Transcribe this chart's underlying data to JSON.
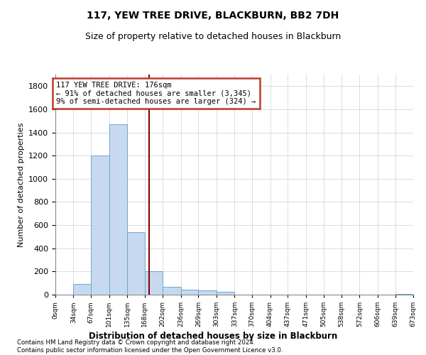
{
  "title": "117, YEW TREE DRIVE, BLACKBURN, BB2 7DH",
  "subtitle": "Size of property relative to detached houses in Blackburn",
  "xlabel": "Distribution of detached houses by size in Blackburn",
  "ylabel": "Number of detached properties",
  "bar_values": [
    0,
    90,
    1200,
    1470,
    540,
    205,
    70,
    45,
    35,
    25,
    0,
    0,
    0,
    0,
    0,
    0,
    0,
    0,
    0,
    5
  ],
  "bin_edges": [
    0,
    34,
    67,
    101,
    135,
    168,
    202,
    236,
    269,
    303,
    337,
    370,
    404,
    437,
    471,
    505,
    538,
    572,
    606,
    639,
    673
  ],
  "bin_labels": [
    "0sqm",
    "34sqm",
    "67sqm",
    "101sqm",
    "135sqm",
    "168sqm",
    "202sqm",
    "236sqm",
    "269sqm",
    "303sqm",
    "337sqm",
    "370sqm",
    "404sqm",
    "437sqm",
    "471sqm",
    "505sqm",
    "538sqm",
    "572sqm",
    "606sqm",
    "639sqm",
    "673sqm"
  ],
  "bar_color": "#c6d9f0",
  "bar_edge_color": "#6ea6cd",
  "vline_x": 176,
  "vline_color": "#8b0000",
  "annotation_line1": "117 YEW TREE DRIVE: 176sqm",
  "annotation_line2": "← 91% of detached houses are smaller (3,345)",
  "annotation_line3": "9% of semi-detached houses are larger (324) →",
  "annotation_box_color": "#c0392b",
  "ylim": [
    0,
    1900
  ],
  "yticks": [
    0,
    200,
    400,
    600,
    800,
    1000,
    1200,
    1400,
    1600,
    1800
  ],
  "footer_line1": "Contains HM Land Registry data © Crown copyright and database right 2024.",
  "footer_line2": "Contains public sector information licensed under the Open Government Licence v3.0.",
  "background_color": "#ffffff",
  "grid_color": "#c8d0d8"
}
